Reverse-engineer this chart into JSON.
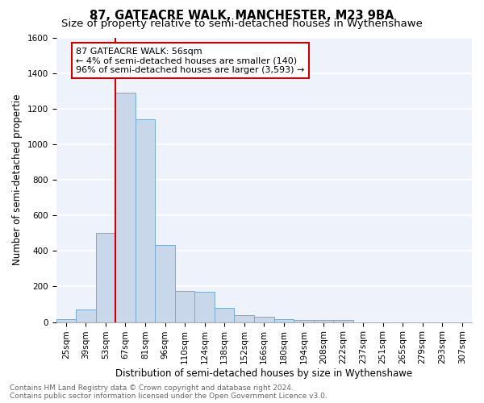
{
  "title": "87, GATEACRE WALK, MANCHESTER, M23 9BA",
  "subtitle": "Size of property relative to semi-detached houses in Wythenshawe",
  "xlabel": "Distribution of semi-detached houses by size in Wythenshawe",
  "ylabel": "Number of semi-detached propertie",
  "categories": [
    "25sqm",
    "39sqm",
    "53sqm",
    "67sqm",
    "81sqm",
    "96sqm",
    "110sqm",
    "124sqm",
    "138sqm",
    "152sqm",
    "166sqm",
    "180sqm",
    "194sqm",
    "208sqm",
    "222sqm",
    "237sqm",
    "251sqm",
    "265sqm",
    "279sqm",
    "293sqm",
    "307sqm"
  ],
  "values": [
    18,
    72,
    500,
    1290,
    1140,
    435,
    175,
    170,
    80,
    40,
    28,
    15,
    10,
    10,
    14,
    0,
    0,
    0,
    0,
    0,
    0
  ],
  "bar_color": "#c8d8ea",
  "bar_edge_color": "#7aaace",
  "property_label": "87 GATEACRE WALK: 56sqm",
  "annotation_line1": "← 4% of semi-detached houses are smaller (140)",
  "annotation_line2": "96% of semi-detached houses are larger (3,593) →",
  "vline_color": "#cc0000",
  "vline_x": 2.5,
  "ylim": [
    0,
    1600
  ],
  "yticks": [
    0,
    200,
    400,
    600,
    800,
    1000,
    1200,
    1400,
    1600
  ],
  "annotation_box_color": "#ffffff",
  "annotation_box_edge": "#cc0000",
  "footer_line1": "Contains HM Land Registry data © Crown copyright and database right 2024.",
  "footer_line2": "Contains public sector information licensed under the Open Government Licence v3.0.",
  "background_color": "#eef2fb",
  "grid_color": "#ffffff",
  "fig_background": "#ffffff",
  "title_fontsize": 10.5,
  "subtitle_fontsize": 9.5,
  "axis_label_fontsize": 8.5,
  "tick_fontsize": 7.5,
  "annotation_fontsize": 8,
  "footer_fontsize": 6.5
}
